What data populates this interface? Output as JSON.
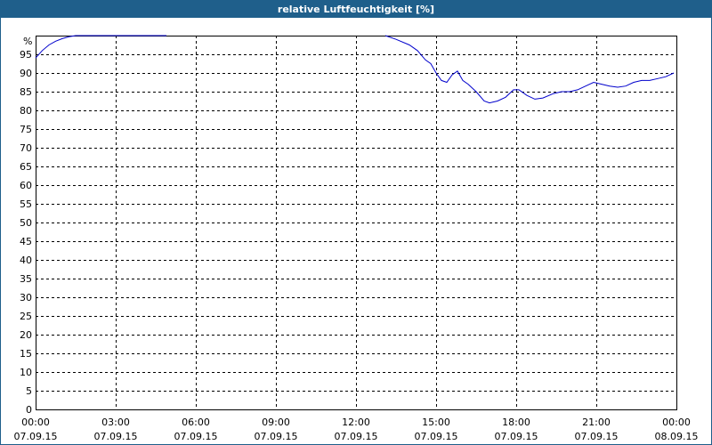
{
  "chart_data": {
    "type": "line",
    "title": "relative Luftfeuchtigkeit [%]",
    "y_unit_label": "%",
    "ylim": [
      0,
      100
    ],
    "y_ticks": [
      0,
      5,
      10,
      15,
      20,
      25,
      30,
      35,
      40,
      45,
      50,
      55,
      60,
      65,
      70,
      75,
      80,
      85,
      90,
      95
    ],
    "x_ticks": [
      {
        "time": "00:00",
        "date": "07.09.15",
        "hour": 0
      },
      {
        "time": "03:00",
        "date": "07.09.15",
        "hour": 3
      },
      {
        "time": "06:00",
        "date": "07.09.15",
        "hour": 6
      },
      {
        "time": "09:00",
        "date": "07.09.15",
        "hour": 9
      },
      {
        "time": "12:00",
        "date": "07.09.15",
        "hour": 12
      },
      {
        "time": "15:00",
        "date": "07.09.15",
        "hour": 15
      },
      {
        "time": "18:00",
        "date": "07.09.15",
        "hour": 18
      },
      {
        "time": "21:00",
        "date": "07.09.15",
        "hour": 21
      },
      {
        "time": "00:00",
        "date": "08.09.15",
        "hour": 24
      }
    ],
    "xlim_hours": [
      0,
      24
    ],
    "grid": true,
    "line_color": "#0000cc",
    "series": [
      {
        "segments": [
          {
            "x": [
              0,
              0.25,
              0.5,
              0.75,
              1.0,
              1.25,
              1.5,
              2,
              3,
              4,
              4.9
            ],
            "y": [
              94,
              96,
              97.5,
              98.5,
              99.2,
              99.7,
              100,
              100,
              100,
              100,
              100
            ]
          },
          {
            "x": [
              13.1,
              13.5,
              14,
              14.3,
              14.6,
              14.8,
              15,
              15.2,
              15.4,
              15.6,
              15.8,
              16,
              16.2,
              16.5,
              16.8,
              17,
              17.3,
              17.6,
              17.9,
              18.1,
              18.4,
              18.7,
              19,
              19.4,
              19.7,
              20,
              20.3,
              20.6,
              20.9,
              21.2,
              21.5,
              21.8,
              22.1,
              22.4,
              22.7,
              23,
              23.3,
              23.6,
              23.9
            ],
            "y": [
              100,
              99,
              97.5,
              96,
              93.5,
              92.5,
              90,
              88,
              87.5,
              89.5,
              90.5,
              88,
              87,
              85,
              82.5,
              82,
              82.5,
              83.5,
              85.5,
              85.5,
              84,
              83,
              83.3,
              84.5,
              85,
              85,
              85.5,
              86.5,
              87.5,
              87,
              86.5,
              86.2,
              86.5,
              87.5,
              88,
              88,
              88.5,
              89,
              90
            ]
          }
        ]
      }
    ]
  }
}
